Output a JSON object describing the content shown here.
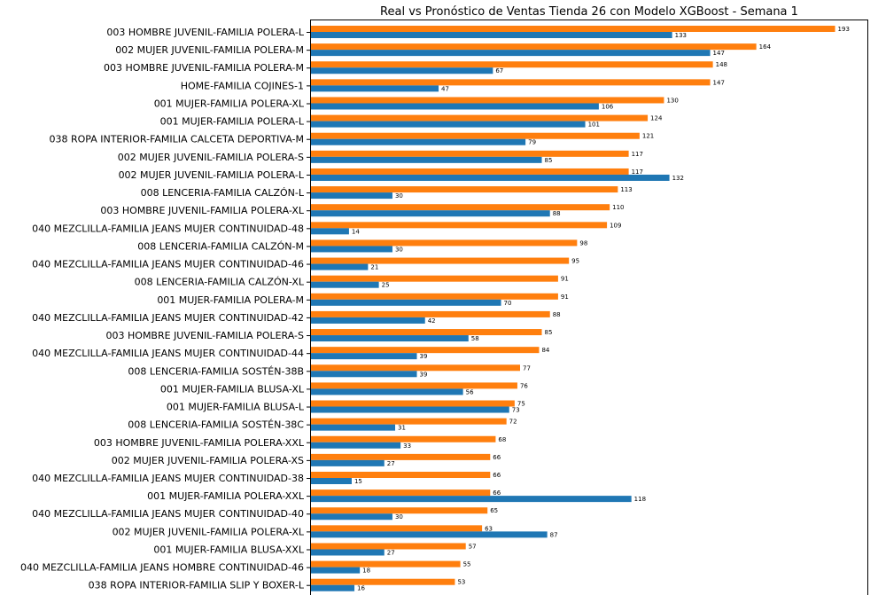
{
  "chart_data": {
    "type": "bar",
    "orientation": "horizontal",
    "title": "Real vs Pronóstico de Ventas Tienda 26 con Modelo XGBoost - Semana 1",
    "xlabel": "",
    "ylabel": "",
    "xlim": [
      0,
      200
    ],
    "grid": false,
    "categories": [
      "003 HOMBRE JUVENIL-FAMILIA POLERA-L",
      "002 MUJER JUVENIL-FAMILIA POLERA-M",
      "003 HOMBRE JUVENIL-FAMILIA POLERA-M",
      "HOME-FAMILIA COJINES-1",
      "001 MUJER-FAMILIA POLERA-XL",
      "001 MUJER-FAMILIA POLERA-L",
      "038 ROPA INTERIOR-FAMILIA CALCETA DEPORTIVA-M",
      "002 MUJER JUVENIL-FAMILIA POLERA-S",
      "002 MUJER JUVENIL-FAMILIA POLERA-L",
      "008 LENCERIA-FAMILIA CALZÓN-L",
      "003 HOMBRE JUVENIL-FAMILIA POLERA-XL",
      "040 MEZCLILLA-FAMILIA JEANS MUJER CONTINUIDAD-48",
      "008 LENCERIA-FAMILIA CALZÓN-M",
      "040 MEZCLILLA-FAMILIA JEANS MUJER CONTINUIDAD-46",
      "008 LENCERIA-FAMILIA CALZÓN-XL",
      "001 MUJER-FAMILIA POLERA-M",
      "040 MEZCLILLA-FAMILIA JEANS MUJER CONTINUIDAD-42",
      "003 HOMBRE JUVENIL-FAMILIA POLERA-S",
      "040 MEZCLILLA-FAMILIA JEANS MUJER CONTINUIDAD-44",
      "008 LENCERIA-FAMILIA SOSTÉN-38B",
      "001 MUJER-FAMILIA BLUSA-XL",
      "001 MUJER-FAMILIA BLUSA-L",
      "008 LENCERIA-FAMILIA SOSTÉN-38C",
      "003 HOMBRE JUVENIL-FAMILIA POLERA-XXL",
      "002 MUJER JUVENIL-FAMILIA POLERA-XS",
      "040 MEZCLILLA-FAMILIA JEANS MUJER CONTINUIDAD-38",
      "001 MUJER-FAMILIA POLERA-XXL",
      "040 MEZCLILLA-FAMILIA JEANS MUJER CONTINUIDAD-40",
      "002 MUJER JUVENIL-FAMILIA POLERA-XL",
      "001 MUJER-FAMILIA BLUSA-XXL",
      "040 MEZCLILLA-FAMILIA JEANS HOMBRE CONTINUIDAD-46",
      "038 ROPA INTERIOR-FAMILIA SLIP Y BOXER-L"
    ],
    "series": [
      {
        "color": "#ff7f0e",
        "values": [
          193,
          164,
          148,
          147,
          130,
          124,
          121,
          117,
          117,
          113,
          110,
          109,
          98,
          95,
          91,
          91,
          88,
          85,
          84,
          77,
          76,
          75,
          72,
          68,
          66,
          66,
          66,
          65,
          63,
          57,
          55,
          53
        ]
      },
      {
        "color": "#1f77b4",
        "values": [
          133,
          147,
          67,
          47,
          106,
          101,
          79,
          85,
          132,
          30,
          88,
          14,
          30,
          21,
          25,
          70,
          42,
          58,
          39,
          39,
          56,
          73,
          31,
          33,
          27,
          15,
          118,
          30,
          87,
          27,
          18,
          16
        ]
      }
    ]
  }
}
